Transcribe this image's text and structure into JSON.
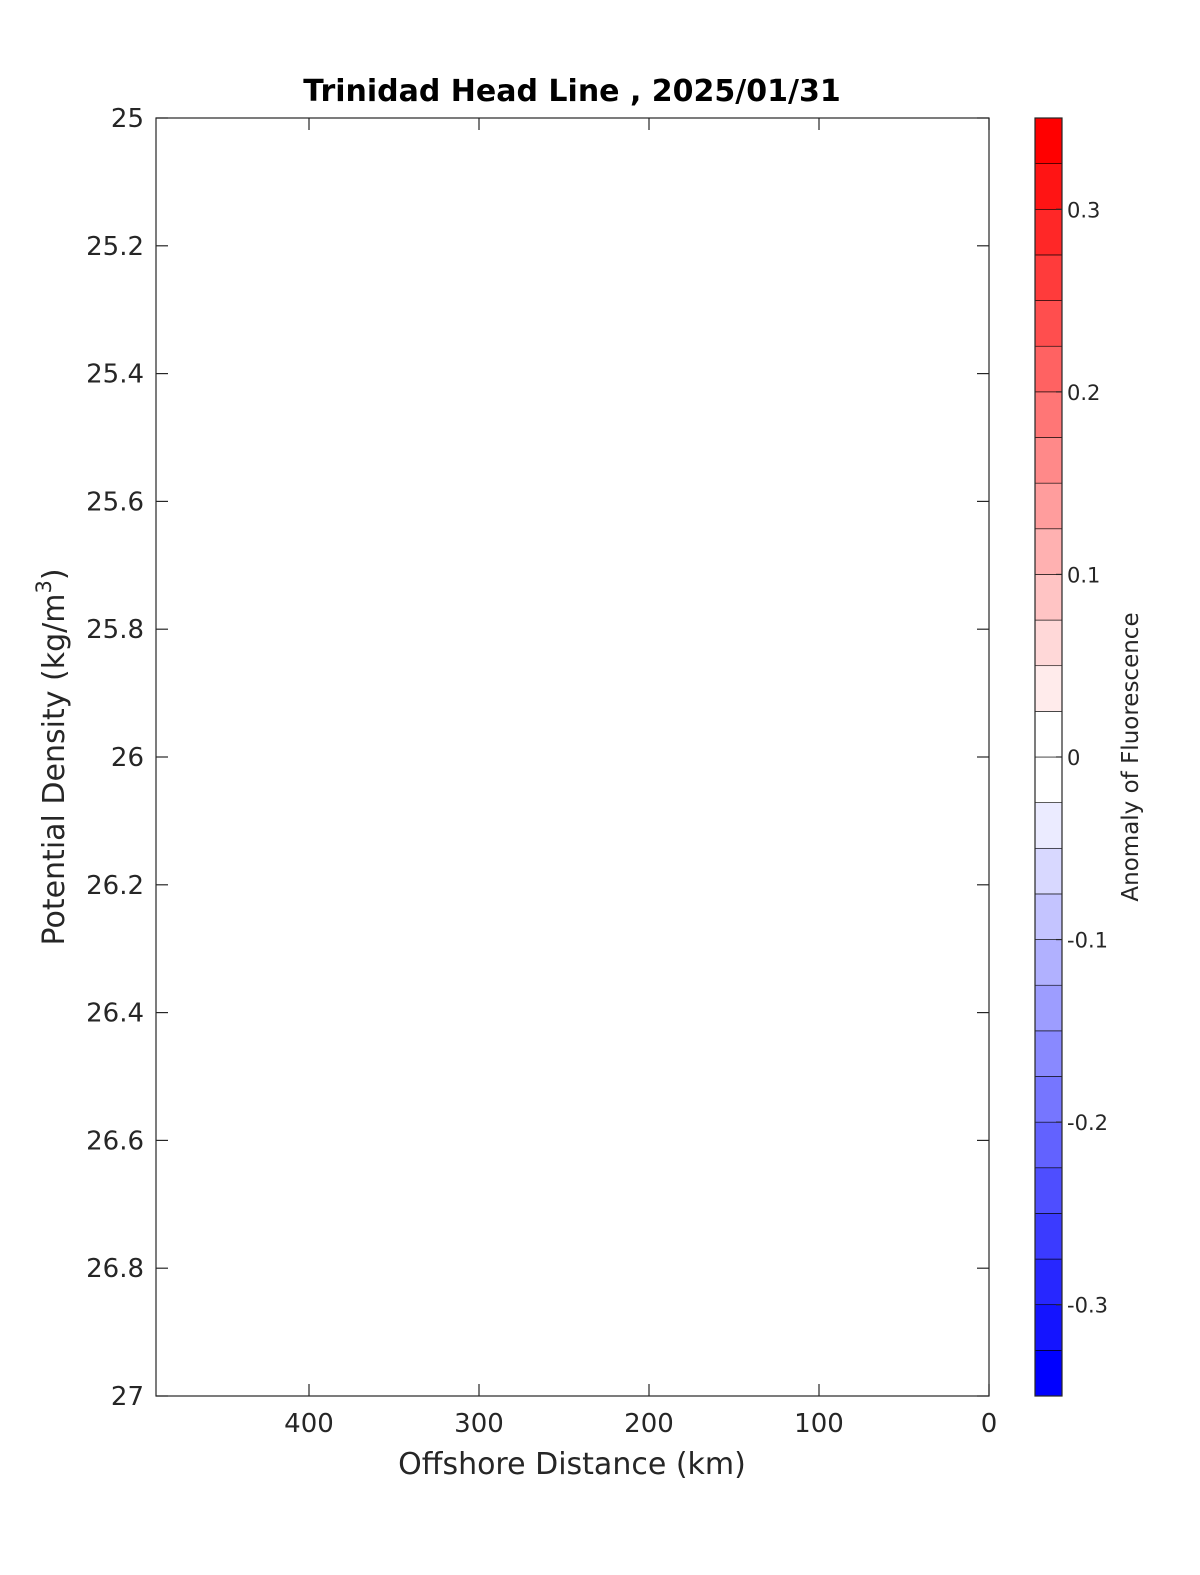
{
  "chart_data": {
    "type": "heatmap",
    "title": "Trinidad Head Line , 2025/01/31",
    "xlabel": "Offshore Distance (km)",
    "ylabel": "Potential Density (kg/m",
    "ylabel_sup": "3",
    "ylabel_close": ")",
    "xlim": [
      490,
      0
    ],
    "x_reversed": true,
    "x_ticks": [
      400,
      300,
      200,
      100,
      0
    ],
    "x_tick_labels": [
      "400",
      "300",
      "200",
      "100",
      "0"
    ],
    "ylim": [
      25,
      27
    ],
    "y_reversed": true,
    "y_ticks": [
      25,
      25.2,
      25.4,
      25.6,
      25.8,
      26,
      26.2,
      26.4,
      26.6,
      26.8,
      27
    ],
    "y_tick_labels": [
      "25",
      "25.2",
      "25.4",
      "25.6",
      "25.8",
      "26",
      "26.2",
      "26.4",
      "26.6",
      "26.8",
      "27"
    ],
    "values": [],
    "colorbar": {
      "label": "Anomaly of Fluorescence",
      "range": [
        -0.35,
        0.35
      ],
      "levels": 28,
      "ticks": [
        0.3,
        0.2,
        0.1,
        0,
        -0.1,
        -0.2,
        -0.3
      ],
      "tick_labels": [
        "0.3",
        "0.2",
        "0.1",
        "0",
        "-0.1",
        "-0.2",
        "-0.3"
      ],
      "colormap": "blue-white-red",
      "low_color": "#0000ff",
      "mid_color": "#ffffff",
      "high_color": "#ff0000"
    }
  }
}
